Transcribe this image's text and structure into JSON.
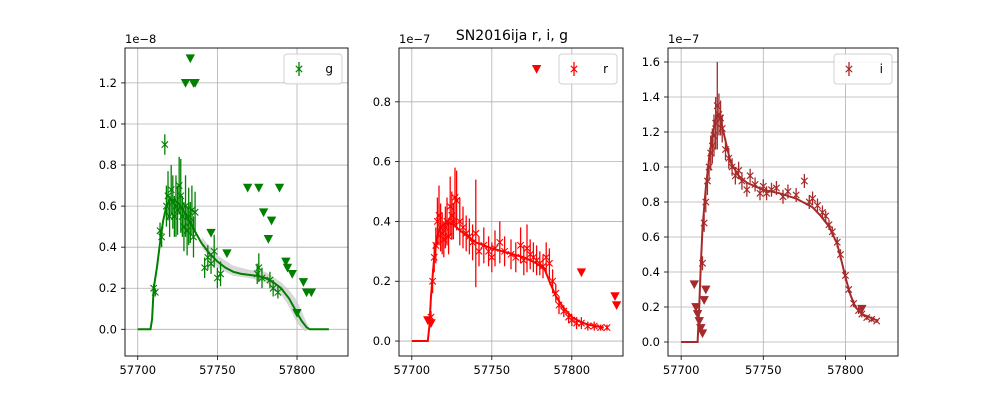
{
  "figure": {
    "title": "SN2016ija  r, i, g"
  },
  "chart_data": [
    {
      "type": "scatter",
      "band": "g",
      "offset_label": "1e−8",
      "legend": {
        "label": "g",
        "placement": "top-right"
      },
      "grid": true,
      "xlim": [
        57692,
        57832
      ],
      "ylim": [
        -0.13,
        1.37
      ],
      "xticks": [
        57700,
        57750,
        57800
      ],
      "yticks": [
        0.0,
        0.2,
        0.4,
        0.6,
        0.8,
        1.0,
        1.2
      ],
      "colors": {
        "series": "#008000",
        "band": "#c8c8c8"
      },
      "model_line": {
        "x": [
          57700,
          57708,
          57709,
          57710,
          57712,
          57714,
          57716,
          57718,
          57720,
          57723,
          57726,
          57730,
          57735,
          57740,
          57745,
          57750,
          57755,
          57760,
          57765,
          57770,
          57775,
          57780,
          57785,
          57790,
          57795,
          57800,
          57803,
          57806,
          57808,
          57810,
          57815,
          57820
        ],
        "y": [
          0.0,
          0.0,
          0.05,
          0.2,
          0.3,
          0.42,
          0.53,
          0.6,
          0.63,
          0.63,
          0.61,
          0.56,
          0.49,
          0.42,
          0.37,
          0.33,
          0.3,
          0.28,
          0.27,
          0.265,
          0.26,
          0.25,
          0.23,
          0.2,
          0.15,
          0.08,
          0.04,
          0.01,
          0.0,
          0.0,
          0.0,
          0.0
        ]
      },
      "model_band": {
        "x": [
          57740,
          57750,
          57760,
          57770,
          57780,
          57790,
          57795,
          57800,
          57805,
          57808
        ],
        "lower": [
          0.4,
          0.3,
          0.26,
          0.25,
          0.23,
          0.17,
          0.11,
          0.03,
          -0.01,
          0.0
        ],
        "upper": [
          0.45,
          0.36,
          0.31,
          0.29,
          0.28,
          0.23,
          0.19,
          0.14,
          0.05,
          0.0
        ]
      },
      "detections": {
        "x": [
          57710,
          57711,
          57714,
          57715,
          57717,
          57718,
          57719,
          57720,
          57721,
          57722,
          57723,
          57724,
          57725,
          57726,
          57727,
          57728,
          57729,
          57730,
          57731,
          57732,
          57733,
          57734,
          57735,
          57736,
          57742,
          57744,
          57746,
          57748,
          57750,
          57752,
          57775,
          57776,
          57778,
          57783,
          57785,
          57788
        ],
        "y": [
          0.2,
          0.18,
          0.48,
          0.45,
          0.9,
          0.6,
          0.65,
          0.55,
          0.68,
          0.62,
          0.55,
          0.6,
          0.58,
          0.7,
          0.65,
          0.55,
          0.5,
          0.6,
          0.48,
          0.55,
          0.52,
          0.58,
          0.45,
          0.57,
          0.3,
          0.35,
          0.32,
          0.38,
          0.25,
          0.27,
          0.27,
          0.3,
          0.25,
          0.24,
          0.2,
          0.18
        ],
        "err": [
          0.02,
          0.02,
          0.04,
          0.05,
          0.05,
          0.1,
          0.12,
          0.1,
          0.12,
          0.13,
          0.1,
          0.15,
          0.12,
          0.14,
          0.18,
          0.1,
          0.12,
          0.15,
          0.12,
          0.14,
          0.1,
          0.12,
          0.1,
          0.1,
          0.05,
          0.06,
          0.05,
          0.08,
          0.05,
          0.06,
          0.05,
          0.07,
          0.05,
          0.04,
          0.04,
          0.03
        ]
      },
      "upper_limits": {
        "x": [
          57730,
          57733,
          57735,
          57736,
          57746,
          57756,
          57769,
          57776,
          57779,
          57782,
          57784,
          57789,
          57793,
          57794,
          57797,
          57800,
          57804,
          57806,
          57809
        ],
        "y": [
          1.2,
          1.32,
          1.2,
          1.2,
          0.47,
          0.37,
          0.69,
          0.69,
          0.57,
          0.44,
          0.53,
          0.69,
          0.33,
          0.3,
          0.27,
          0.08,
          0.23,
          0.18,
          0.18
        ]
      }
    },
    {
      "type": "scatter",
      "band": "r",
      "offset_label": "1e−7",
      "legend": {
        "label": "r",
        "placement": "top-right"
      },
      "grid": true,
      "xlim": [
        57692,
        57832
      ],
      "ylim": [
        -0.05,
        0.98
      ],
      "xticks": [
        57700,
        57750,
        57800
      ],
      "yticks": [
        0.0,
        0.2,
        0.4,
        0.6,
        0.8
      ],
      "colors": {
        "series": "#ff0000",
        "band": "#c8c8c8"
      },
      "model_line": {
        "x": [
          57700,
          57708,
          57710,
          57711,
          57712,
          57714,
          57716,
          57718,
          57720,
          57723,
          57726,
          57730,
          57735,
          57740,
          57750,
          57760,
          57770,
          57778,
          57783,
          57786,
          57790,
          57795,
          57800,
          57805,
          57810,
          57815,
          57820
        ],
        "y": [
          0.0,
          0.0,
          0.0,
          0.05,
          0.15,
          0.28,
          0.35,
          0.38,
          0.39,
          0.395,
          0.39,
          0.37,
          0.35,
          0.33,
          0.31,
          0.295,
          0.28,
          0.26,
          0.24,
          0.2,
          0.15,
          0.11,
          0.08,
          0.065,
          0.055,
          0.05,
          0.045
        ]
      },
      "detections": {
        "x": [
          57712,
          57713,
          57714,
          57715,
          57716,
          57717,
          57718,
          57719,
          57720,
          57721,
          57722,
          57723,
          57724,
          57725,
          57726,
          57727,
          57728,
          57730,
          57732,
          57734,
          57736,
          57738,
          57740,
          57742,
          57745,
          57748,
          57750,
          57752,
          57755,
          57758,
          57762,
          57765,
          57768,
          57770,
          57772,
          57774,
          57776,
          57778,
          57780,
          57782,
          57784,
          57786,
          57788,
          57790,
          57792,
          57795,
          57798,
          57800,
          57803,
          57806,
          57810,
          57814,
          57818,
          57822
        ],
        "y": [
          0.08,
          0.2,
          0.28,
          0.32,
          0.4,
          0.42,
          0.38,
          0.36,
          0.34,
          0.38,
          0.4,
          0.35,
          0.45,
          0.42,
          0.4,
          0.48,
          0.47,
          0.4,
          0.38,
          0.36,
          0.35,
          0.33,
          0.36,
          0.3,
          0.32,
          0.3,
          0.28,
          0.31,
          0.33,
          0.3,
          0.29,
          0.28,
          0.32,
          0.27,
          0.31,
          0.29,
          0.28,
          0.27,
          0.26,
          0.25,
          0.28,
          0.26,
          0.2,
          0.16,
          0.12,
          0.1,
          0.08,
          0.07,
          0.06,
          0.06,
          0.05,
          0.05,
          0.045,
          0.045
        ],
        "err": [
          0.02,
          0.04,
          0.05,
          0.06,
          0.08,
          0.1,
          0.08,
          0.07,
          0.06,
          0.07,
          0.08,
          0.06,
          0.1,
          0.08,
          0.06,
          0.1,
          0.1,
          0.08,
          0.07,
          0.06,
          0.06,
          0.06,
          0.18,
          0.05,
          0.06,
          0.05,
          0.05,
          0.06,
          0.07,
          0.05,
          0.05,
          0.05,
          0.06,
          0.05,
          0.08,
          0.05,
          0.05,
          0.05,
          0.04,
          0.04,
          0.05,
          0.05,
          0.04,
          0.03,
          0.03,
          0.02,
          0.02,
          0.02,
          0.02,
          0.02,
          0.015,
          0.015,
          0.01,
          0.01
        ]
      },
      "upper_limits": {
        "x": [
          57710,
          57712,
          57778,
          57806,
          57827,
          57828
        ],
        "y": [
          0.07,
          0.06,
          0.91,
          0.23,
          0.15,
          0.12
        ]
      }
    },
    {
      "type": "scatter",
      "band": "i",
      "offset_label": "1e−7",
      "legend": {
        "label": "i",
        "placement": "top-right"
      },
      "grid": true,
      "xlim": [
        57692,
        57832
      ],
      "ylim": [
        -0.08,
        1.68
      ],
      "xticks": [
        57700,
        57750,
        57800
      ],
      "yticks": [
        0.0,
        0.2,
        0.4,
        0.6,
        0.8,
        1.0,
        1.2,
        1.4,
        1.6
      ],
      "colors": {
        "series": "#a52a2a",
        "band": "#c8c8c8"
      },
      "model_line": {
        "x": [
          57700,
          57708,
          57710,
          57711,
          57712,
          57713,
          57715,
          57717,
          57719,
          57721,
          57722,
          57724,
          57727,
          57730,
          57735,
          57740,
          57745,
          57750,
          57760,
          57770,
          57780,
          57785,
          57790,
          57795,
          57798,
          57800,
          57803,
          57806,
          57810,
          57815,
          57820
        ],
        "y": [
          0.0,
          0.0,
          0.0,
          0.2,
          0.45,
          0.65,
          0.88,
          1.05,
          1.18,
          1.27,
          1.3,
          1.27,
          1.15,
          1.03,
          0.95,
          0.91,
          0.89,
          0.87,
          0.85,
          0.82,
          0.77,
          0.72,
          0.66,
          0.56,
          0.45,
          0.37,
          0.27,
          0.2,
          0.16,
          0.14,
          0.12
        ]
      },
      "detections": {
        "x": [
          57713,
          57714,
          57715,
          57716,
          57717,
          57718,
          57719,
          57720,
          57721,
          57722,
          57723,
          57724,
          57725,
          57727,
          57729,
          57731,
          57733,
          57735,
          57737,
          57740,
          57742,
          57745,
          57748,
          57750,
          57752,
          57755,
          57758,
          57762,
          57765,
          57770,
          57775,
          57778,
          57780,
          57783,
          57786,
          57788,
          57790,
          57792,
          57795,
          57797,
          57800,
          57802,
          57805,
          57808,
          57810,
          57813,
          57816,
          57819
        ],
        "y": [
          0.45,
          0.68,
          0.8,
          0.92,
          1.0,
          1.08,
          1.12,
          1.18,
          1.25,
          1.35,
          1.3,
          1.28,
          1.22,
          1.1,
          1.05,
          1.0,
          0.95,
          0.98,
          0.92,
          0.87,
          0.95,
          0.9,
          0.85,
          0.89,
          0.85,
          0.87,
          0.88,
          0.83,
          0.86,
          0.84,
          0.92,
          0.8,
          0.82,
          0.78,
          0.74,
          0.72,
          0.67,
          0.63,
          0.57,
          0.5,
          0.38,
          0.3,
          0.22,
          0.18,
          0.16,
          0.14,
          0.13,
          0.12
        ],
        "err": [
          0.04,
          0.05,
          0.06,
          0.08,
          0.08,
          0.1,
          0.1,
          0.12,
          0.15,
          0.25,
          0.12,
          0.1,
          0.08,
          0.06,
          0.06,
          0.05,
          0.05,
          0.05,
          0.05,
          0.04,
          0.04,
          0.04,
          0.04,
          0.04,
          0.04,
          0.04,
          0.04,
          0.04,
          0.04,
          0.04,
          0.04,
          0.04,
          0.04,
          0.04,
          0.04,
          0.03,
          0.03,
          0.03,
          0.03,
          0.03,
          0.03,
          0.02,
          0.02,
          0.02,
          0.02,
          0.015,
          0.015,
          0.01
        ]
      },
      "upper_limits": {
        "x": [
          57708,
          57709,
          57710,
          57711,
          57712,
          57713,
          57714,
          57715,
          57810
        ],
        "y": [
          0.33,
          0.2,
          0.16,
          0.12,
          0.08,
          0.05,
          0.24,
          0.3,
          0.19
        ]
      }
    }
  ]
}
